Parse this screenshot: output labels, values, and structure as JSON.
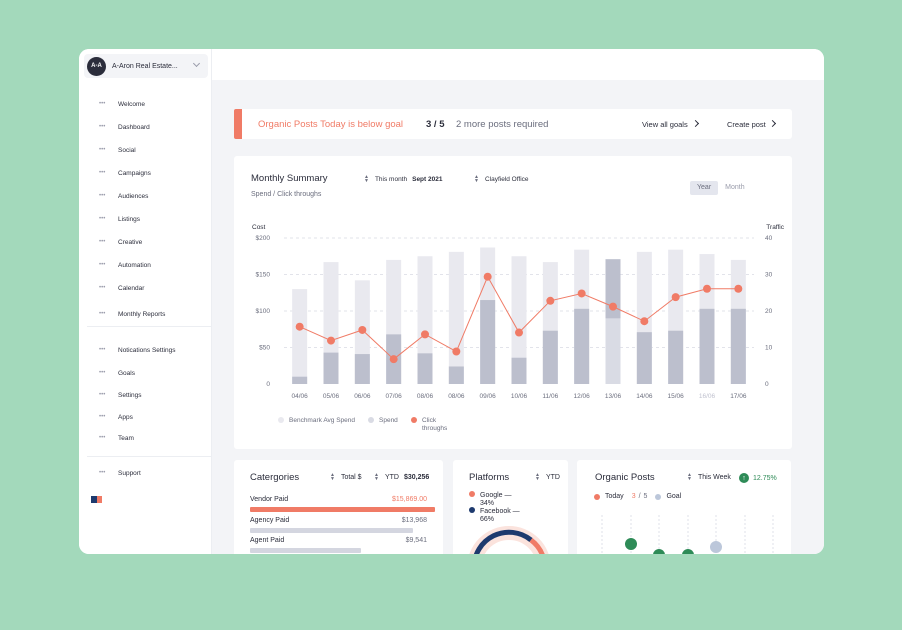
{
  "account": {
    "initials": "A-A",
    "name": "A-Aron Real Estate..."
  },
  "nav": {
    "group1": [
      "Welcome",
      "Dashboard",
      "Social",
      "Campaigns",
      "Audiences",
      "Listings",
      "Creative",
      "Automation",
      "Calendar",
      "Monthly Reports"
    ],
    "group2": [
      "Notications Settings",
      "Goals",
      "Settings",
      "Apps",
      "Team"
    ],
    "group3": [
      "Support"
    ]
  },
  "goal_banner": {
    "message": "Organic Posts Today is below goal",
    "count": "3 / 5",
    "remaining": "2 more posts required",
    "view_all": "View all goals",
    "create": "Create post",
    "accent": "#f07b66"
  },
  "summary": {
    "title": "Monthly Summary",
    "subtitle": "Spend / Click throughs",
    "period_label": "This month",
    "period_value": "Sept 2021",
    "office": "Clayfield Office",
    "toggle": [
      "Year",
      "Month"
    ],
    "toggle_active": "Year"
  },
  "chart_data": {
    "type": "bar",
    "ylabel": "Cost",
    "y2label": "Traffic",
    "ylim": [
      0,
      200
    ],
    "y2lim": [
      0,
      40
    ],
    "yticks": [
      "0",
      "$50",
      "$100",
      "$150",
      "$200"
    ],
    "y2ticks": [
      "0",
      "10",
      "20",
      "30",
      "40"
    ],
    "categories": [
      "04/06",
      "05/06",
      "06/06",
      "07/06",
      "08/06",
      "08/06",
      "09/06",
      "10/06",
      "11/06",
      "12/06",
      "13/06",
      "14/06",
      "15/06",
      "16/06",
      "17/06"
    ],
    "highlight_index": 10,
    "muted_index": 13,
    "series": [
      {
        "name": "Benchmark Avg Spend",
        "kind": "bar",
        "color": "#e9e9ef",
        "values": [
          130,
          167,
          142,
          170,
          175,
          181,
          187,
          175,
          167,
          184,
          171,
          181,
          184,
          178,
          170
        ]
      },
      {
        "name": "Spend",
        "kind": "bar",
        "color": "#bcbfcd",
        "values": [
          10,
          43,
          41,
          68,
          42,
          24,
          115,
          36,
          73,
          103,
          90,
          71,
          73,
          103,
          103
        ]
      },
      {
        "name": "Click throughs",
        "kind": "line",
        "color": "#f07b66",
        "values": [
          15.7,
          11.9,
          14.8,
          6.8,
          13.6,
          8.9,
          29.4,
          14.1,
          22.8,
          24.8,
          21.2,
          17.2,
          23.8,
          26.1,
          26.1
        ]
      }
    ],
    "legend": [
      "Benchmark Avg Spend",
      "Spend",
      "Click throughs"
    ]
  },
  "categories_card": {
    "title": "Catergories",
    "sel1": "Total $",
    "sel2_label": "YTD",
    "sel2_value": "$30,256",
    "items": [
      {
        "label": "Vendor Paid",
        "value": "$15,869.00",
        "fraction": 1.0,
        "color": "#f07b66"
      },
      {
        "label": "Agency Paid",
        "value": "$13,968",
        "fraction": 0.88,
        "color": "#d4d6e0"
      },
      {
        "label": "Agent Paid",
        "value": "$9,541",
        "fraction": 0.6,
        "color": "#d4d6e0"
      }
    ]
  },
  "platforms_card": {
    "title": "Platforms",
    "sel": "YTD",
    "items": [
      {
        "name": "Google —",
        "pct": "34%",
        "color": "#f07b66"
      },
      {
        "name": "Facebook —",
        "pct": "66%",
        "color": "#1e3a6e"
      }
    ]
  },
  "organic_card": {
    "title": "Organic Posts",
    "sel": "This Week",
    "change": "12.75%",
    "today_label": "Today",
    "today_value": "3",
    "goal_value": "5",
    "goal_label": "Goal",
    "today_color": "#f07b66",
    "goal_color": "#bcc7da",
    "dot_color": "#2e8b57"
  }
}
